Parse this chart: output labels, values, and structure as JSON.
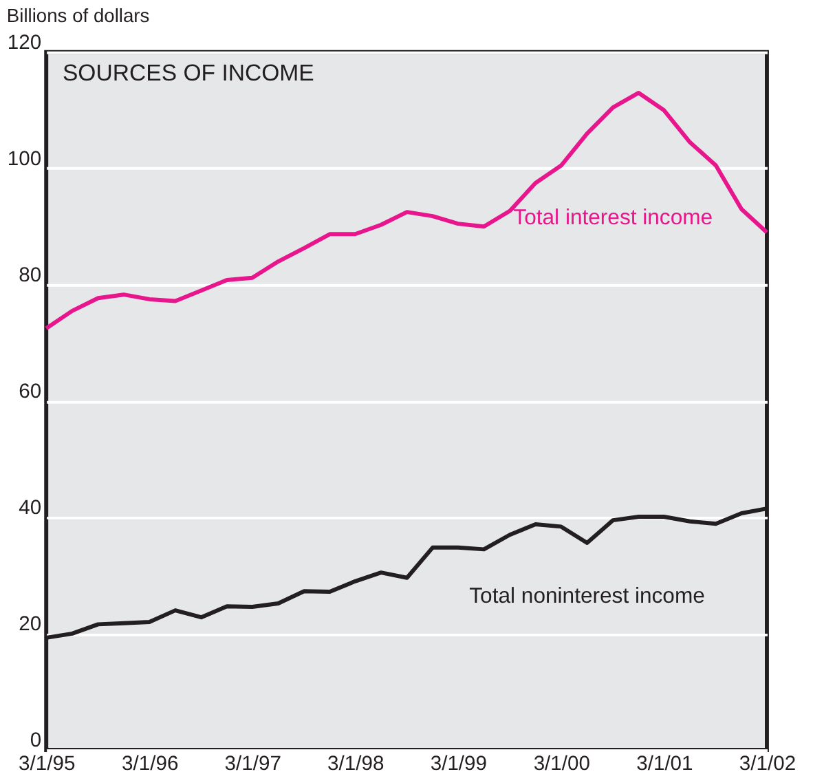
{
  "chart_data": {
    "type": "line",
    "title": "SOURCES OF INCOME",
    "ylabel": "Billions of dollars",
    "x": [
      "1995-03-01",
      "1995-06-01",
      "1995-09-01",
      "1995-12-01",
      "1996-03-01",
      "1996-06-01",
      "1996-09-01",
      "1996-12-01",
      "1997-03-01",
      "1997-06-01",
      "1997-09-01",
      "1997-12-01",
      "1998-03-01",
      "1998-06-01",
      "1998-09-01",
      "1998-12-01",
      "1999-03-01",
      "1999-06-01",
      "1999-09-01",
      "1999-12-01",
      "2000-03-01",
      "2000-06-01",
      "2000-09-01",
      "2000-12-01",
      "2001-03-01",
      "2001-06-01",
      "2001-09-01",
      "2001-12-01",
      "2002-03-01"
    ],
    "series": [
      {
        "name": "Total interest income",
        "color": "#e8168c",
        "values": [
          72.5,
          75.5,
          77.7,
          78.3,
          77.5,
          77.2,
          79,
          80.8,
          81.2,
          84,
          86.3,
          88.7,
          88.7,
          90.3,
          92.5,
          91.8,
          90.5,
          90,
          92.7,
          97.5,
          100.5,
          106,
          110.5,
          113,
          110,
          104.5,
          100.5,
          93,
          89
        ]
      },
      {
        "name": "Total noninterest income",
        "color": "#231f20",
        "values": [
          19.3,
          20,
          21.6,
          21.8,
          22,
          24,
          22.8,
          24.7,
          24.6,
          25.2,
          27.3,
          27.2,
          29,
          30.5,
          29.6,
          34.8,
          34.8,
          34.5,
          37,
          38.8,
          38.4,
          35.6,
          39.5,
          40.1,
          40.1,
          39.3,
          38.9,
          40.7,
          41.5
        ]
      }
    ],
    "xlim": [
      "1995-03-01",
      "2002-03-01"
    ],
    "xticks": [
      {
        "value": "1995-03-01",
        "label": "3/1/95"
      },
      {
        "value": "1996-03-01",
        "label": "3/1/96"
      },
      {
        "value": "1997-03-01",
        "label": "3/1/97"
      },
      {
        "value": "1998-03-01",
        "label": "3/1/98"
      },
      {
        "value": "1999-03-01",
        "label": "3/1/99"
      },
      {
        "value": "2000-03-01",
        "label": "3/1/00"
      },
      {
        "value": "2001-03-01",
        "label": "3/1/01"
      },
      {
        "value": "2002-03-01",
        "label": "3/1/02"
      }
    ],
    "ylim": [
      0,
      120
    ],
    "yticks": [
      0,
      20,
      40,
      60,
      80,
      100,
      120
    ],
    "grid": "y",
    "legend": false,
    "marker": "none",
    "line_style": "solid"
  }
}
